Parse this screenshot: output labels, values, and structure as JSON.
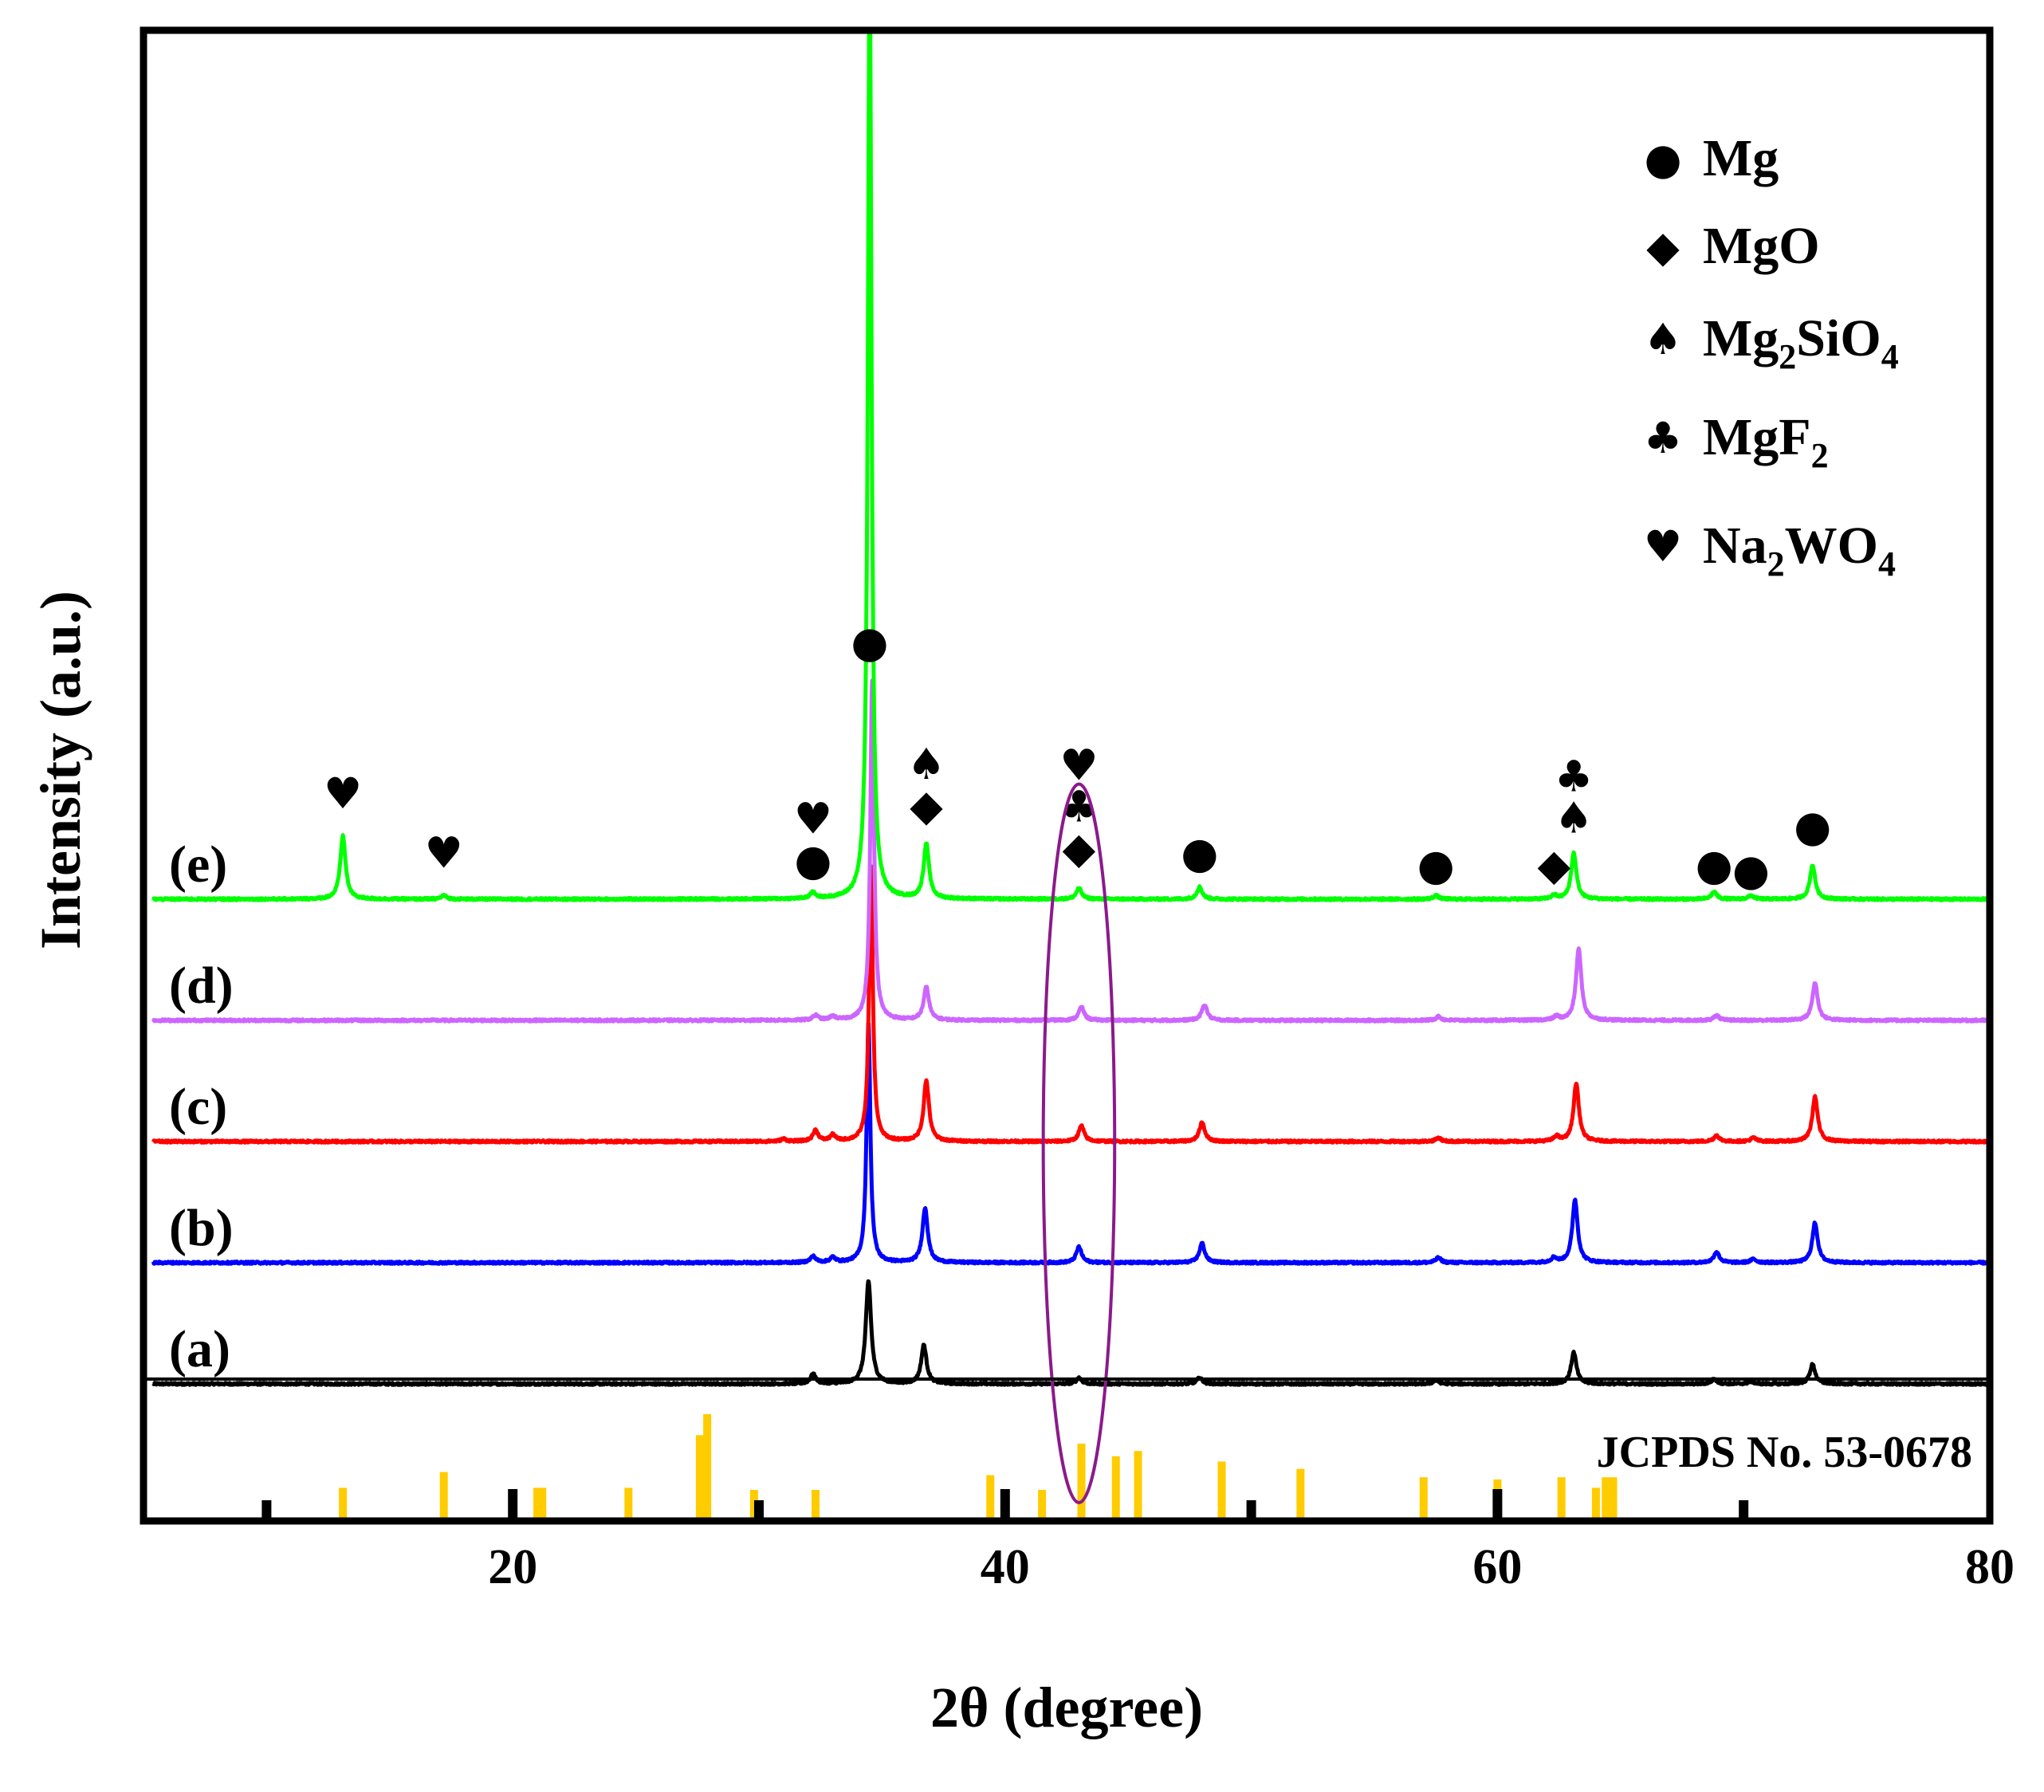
{
  "chart_data": {
    "type": "line",
    "title": "",
    "xlabel": "2θ (degree)",
    "ylabel": "Intensity (a.u.)",
    "xlim": [
      5,
      80
    ],
    "x_ticks": [
      20,
      40,
      60,
      80
    ],
    "x_tick_labels": [
      "20",
      "40",
      "60",
      "80"
    ],
    "grid": false,
    "series": [
      {
        "name": "(a)",
        "color": "#000000",
        "baseline": 0.0,
        "peaks": [
          [
            32.2,
            0.08
          ],
          [
            34.45,
            0.85
          ],
          [
            36.7,
            0.32
          ],
          [
            43.0,
            0.05
          ],
          [
            47.9,
            0.05
          ],
          [
            57.5,
            0.03
          ],
          [
            63.1,
            0.26
          ],
          [
            68.8,
            0.04
          ],
          [
            70.3,
            0.02
          ],
          [
            72.8,
            0.16
          ]
        ]
      },
      {
        "name": "(b)",
        "color": "#0000ff",
        "baseline": 1.0,
        "peaks": [
          [
            32.2,
            0.05
          ],
          [
            33.0,
            0.04
          ],
          [
            34.45,
            2.0
          ],
          [
            36.75,
            0.45
          ],
          [
            43.0,
            0.13
          ],
          [
            48.0,
            0.16
          ],
          [
            57.6,
            0.04
          ],
          [
            62.3,
            0.04
          ],
          [
            63.15,
            0.52
          ],
          [
            68.9,
            0.09
          ],
          [
            70.4,
            0.03
          ],
          [
            72.9,
            0.33
          ]
        ]
      },
      {
        "name": "(c)",
        "color": "#ff0000",
        "baseline": 2.0,
        "peaks": [
          [
            31.0,
            0.02
          ],
          [
            32.3,
            0.09
          ],
          [
            33.0,
            0.05
          ],
          [
            34.55,
            2.3
          ],
          [
            36.8,
            0.5
          ],
          [
            43.1,
            0.13
          ],
          [
            48.0,
            0.16
          ],
          [
            57.6,
            0.03
          ],
          [
            62.4,
            0.04
          ],
          [
            63.2,
            0.48
          ],
          [
            68.9,
            0.05
          ],
          [
            70.4,
            0.03
          ],
          [
            72.9,
            0.37
          ]
        ]
      },
      {
        "name": "(d)",
        "color": "#cc66ff",
        "baseline": 3.0,
        "peaks": [
          [
            32.3,
            0.04
          ],
          [
            33.0,
            0.03
          ],
          [
            34.6,
            2.8
          ],
          [
            36.8,
            0.27
          ],
          [
            43.1,
            0.11
          ],
          [
            48.1,
            0.13
          ],
          [
            57.6,
            0.03
          ],
          [
            62.4,
            0.03
          ],
          [
            63.3,
            0.59
          ],
          [
            68.9,
            0.04
          ],
          [
            72.9,
            0.31
          ]
        ]
      },
      {
        "name": "(e)",
        "color": "#00ff00",
        "baseline": 4.0,
        "peaks": [
          [
            13.1,
            0.52
          ],
          [
            17.2,
            0.03
          ],
          [
            32.2,
            0.05
          ],
          [
            34.5,
            7.7
          ],
          [
            36.8,
            0.45
          ],
          [
            43.0,
            0.09
          ],
          [
            47.9,
            0.1
          ],
          [
            57.5,
            0.03
          ],
          [
            62.3,
            0.03
          ],
          [
            63.1,
            0.38
          ],
          [
            68.8,
            0.06
          ],
          [
            70.3,
            0.03
          ],
          [
            72.8,
            0.28
          ]
        ]
      }
    ],
    "reference": {
      "label": "JCPDS No. 53-0678",
      "color": "#ffcc00",
      "sticks": [
        [
          13.1,
          0.3
        ],
        [
          17.2,
          0.45
        ],
        [
          21.0,
          0.3
        ],
        [
          21.2,
          0.3
        ],
        [
          24.7,
          0.3
        ],
        [
          27.6,
          0.8
        ],
        [
          27.9,
          1.0
        ],
        [
          29.8,
          0.28
        ],
        [
          32.3,
          0.28
        ],
        [
          39.4,
          0.42
        ],
        [
          41.5,
          0.28
        ],
        [
          43.1,
          0.72
        ],
        [
          44.5,
          0.6
        ],
        [
          45.4,
          0.65
        ],
        [
          48.8,
          0.55
        ],
        [
          52.0,
          0.48
        ],
        [
          57.0,
          0.4
        ],
        [
          60.0,
          0.38
        ],
        [
          62.6,
          0.4
        ],
        [
          64.0,
          0.3
        ],
        [
          64.4,
          0.4
        ],
        [
          64.7,
          0.4
        ]
      ]
    },
    "annotations": [
      {
        "x": 13.1,
        "y": 4.75,
        "symbols": [
          "heart"
        ]
      },
      {
        "x": 17.2,
        "y": 4.26,
        "symbols": [
          "heart"
        ]
      },
      {
        "x": 32.2,
        "y": 4.2,
        "symbols": [
          "circle",
          "heart"
        ]
      },
      {
        "x": 34.5,
        "y": 6.0,
        "symbols": [
          "circle"
        ]
      },
      {
        "x": 36.8,
        "y": 4.65,
        "symbols": [
          "diamond",
          "spade"
        ]
      },
      {
        "x": 43.0,
        "y": 4.3,
        "symbols": [
          "diamond",
          "club",
          "heart"
        ]
      },
      {
        "x": 47.9,
        "y": 4.26,
        "symbols": [
          "circle"
        ]
      },
      {
        "x": 57.5,
        "y": 4.16,
        "symbols": [
          "circle"
        ]
      },
      {
        "x": 62.3,
        "y": 4.16,
        "symbols": [
          "diamond"
        ]
      },
      {
        "x": 63.1,
        "y": 4.55,
        "symbols": [
          "spade",
          "club"
        ]
      },
      {
        "x": 68.8,
        "y": 4.16,
        "symbols": [
          "circle"
        ]
      },
      {
        "x": 70.3,
        "y": 4.12,
        "symbols": [
          "circle"
        ]
      },
      {
        "x": 72.8,
        "y": 4.48,
        "symbols": [
          "circle"
        ]
      }
    ],
    "highlight_ellipse": {
      "x_center": 43.0,
      "x_halfwidth": 1.45,
      "y_min": -0.98,
      "y_max": 4.95,
      "color": "#8b1a8b"
    },
    "legend": {
      "position": "top-right",
      "entries": [
        {
          "symbol": "circle",
          "parts": [
            "Mg"
          ]
        },
        {
          "symbol": "diamond",
          "parts": [
            "MgO"
          ]
        },
        {
          "symbol": "spade",
          "parts": [
            "Mg",
            "2",
            "SiO",
            "4"
          ]
        },
        {
          "symbol": "club",
          "parts": [
            "MgF",
            "2"
          ]
        },
        {
          "symbol": "heart",
          "parts": [
            "Na",
            "2",
            "WO",
            "4"
          ]
        }
      ]
    },
    "symbol_glyphs": {
      "circle": "●",
      "diamond": "◆",
      "spade": "♠",
      "club": "♣",
      "heart": "♥"
    }
  }
}
